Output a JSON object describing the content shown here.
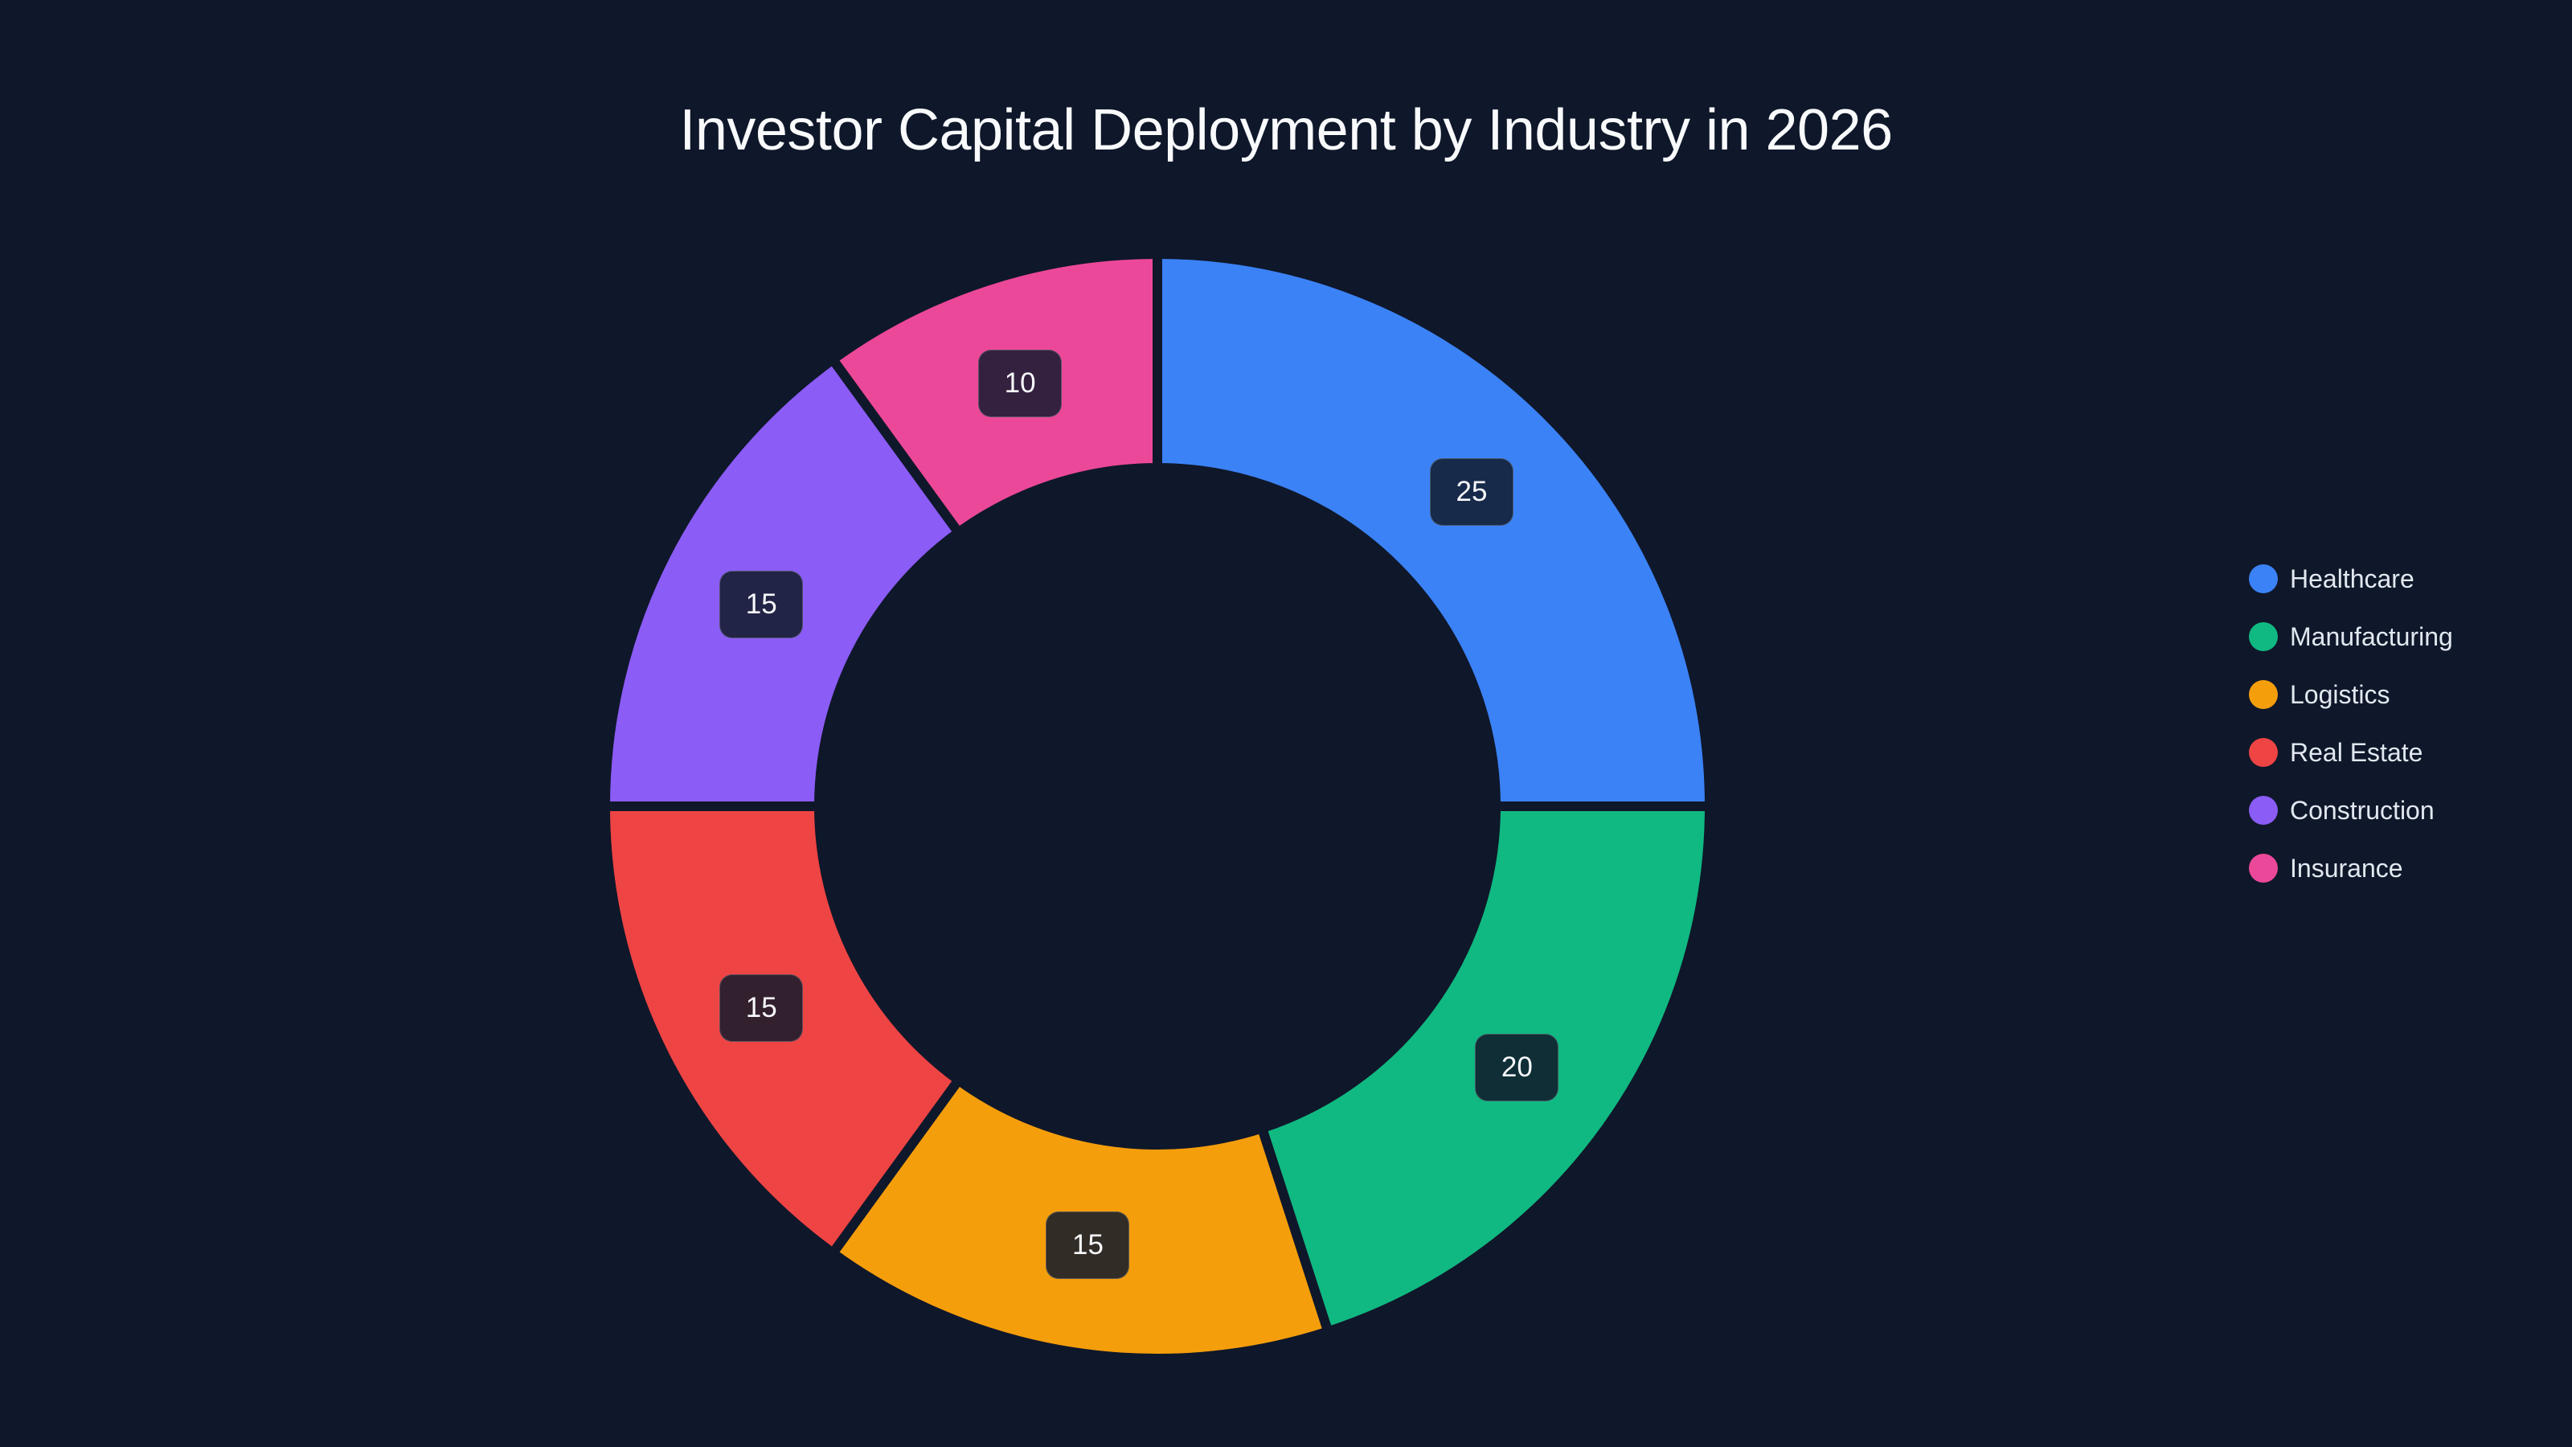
{
  "title": "Investor Capital Deployment by Industry in 2026",
  "colors": {
    "background": "#0f172a",
    "title_text": "#f8fafc",
    "legend_text": "#e2e8f0"
  },
  "chart_data": {
    "type": "pie",
    "variant": "donut",
    "title": "Investor Capital Deployment by Industry in 2026",
    "categories": [
      "Healthcare",
      "Manufacturing",
      "Logistics",
      "Real Estate",
      "Construction",
      "Insurance"
    ],
    "values": [
      25,
      20,
      15,
      15,
      15,
      10
    ],
    "colors": [
      "#3b82f6",
      "#10b981",
      "#f59e0b",
      "#ef4444",
      "#8b5cf6",
      "#ec4899"
    ],
    "label_backgrounds": [
      "#172a4a",
      "#0f2e36",
      "#322c26",
      "#33202f",
      "#222447",
      "#33213f"
    ],
    "data_labels": [
      "25",
      "20",
      "15",
      "15",
      "15",
      "10"
    ],
    "start_angle_deg": 0,
    "direction": "clockwise",
    "inner_radius_ratio": 0.613,
    "legend_position": "right",
    "grid": false
  },
  "legend": {
    "items": [
      {
        "label": "Healthcare",
        "color": "#3b82f6"
      },
      {
        "label": "Manufacturing",
        "color": "#10b981"
      },
      {
        "label": "Logistics",
        "color": "#f59e0b"
      },
      {
        "label": "Real Estate",
        "color": "#ef4444"
      },
      {
        "label": "Construction",
        "color": "#8b5cf6"
      },
      {
        "label": "Insurance",
        "color": "#ec4899"
      }
    ]
  }
}
